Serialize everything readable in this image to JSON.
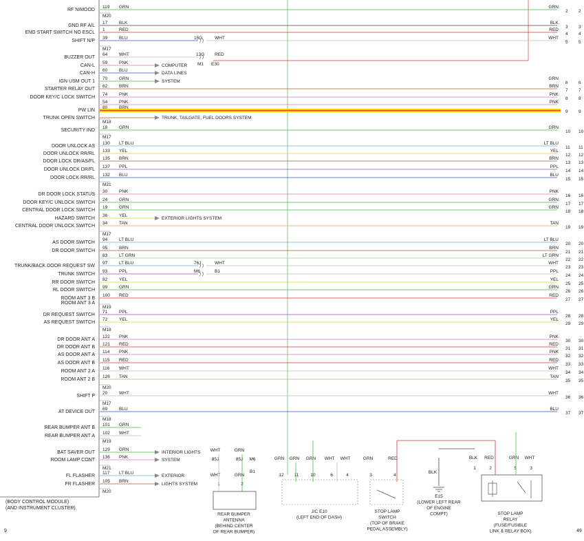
{
  "module_label": [
    "(BODY CONTROL MODULE)",
    "(AND INSTRUMENT CLUSTER)"
  ],
  "page_left": "9",
  "page_right": "49",
  "pins": [
    {
      "label": "RF NIMOOD",
      "pin": "119",
      "color": "GRN",
      "rcolor": "GRN",
      "num": "2",
      "num2": "2",
      "hex": "#4cb84c"
    },
    {
      "conn": "M20"
    },
    {
      "label": "GND RF A/L",
      "pin": "17",
      "color": "BLK",
      "rcolor": "BLK",
      "num": "3",
      "num2": "3",
      "hex": "#444444"
    },
    {
      "label": "ENG START SWITCH NO ESCL",
      "pin": "1",
      "color": "RED",
      "rcolor": "RED",
      "num": "4",
      "num2": "4",
      "hex": "#e03030"
    },
    {
      "label": "SHIFT N/P",
      "pin": "39",
      "color": "BLU",
      "rcolor": "WHT",
      "num": "5",
      "num2": "5",
      "hex": "#3050d0",
      "splice": {
        "code": "15G",
        "wire": "WHT"
      }
    },
    {
      "conn": "M17"
    },
    {
      "label": "BUZZER OUT",
      "pin": "64",
      "color": "WHT",
      "rcolor": "",
      "num": "",
      "num2": "",
      "hex": "#bbbbbb",
      "splice": {
        "code": "13G",
        "wire": "RED",
        "extra1": "M1",
        "extra2": "E30"
      }
    },
    {
      "label": "CAN-L",
      "pin": "59",
      "color": "PNK",
      "rcolor": "",
      "num": "",
      "num2": "",
      "hex": "#e070c0",
      "arrow": "COMPUTER"
    },
    {
      "label": "CAN-H",
      "pin": "60",
      "color": "BLU",
      "rcolor": "",
      "num": "",
      "num2": "",
      "hex": "#3050d0",
      "arrow": "DATA LINES"
    },
    {
      "label": "IGN USM OUT 1",
      "pin": "70",
      "color": "GRN",
      "rcolor": "GRN",
      "num": "6",
      "num2": "6",
      "hex": "#4cb84c",
      "arrow": "SYSTEM"
    },
    {
      "label": "STARTER RELAY OUT",
      "pin": "62",
      "color": "BRN",
      "rcolor": "BRN",
      "num": "7",
      "num2": "7",
      "hex": "#a06030"
    },
    {
      "label": "DOOR KEY/C LOCK SWITCH",
      "pin": "74",
      "color": "PNK",
      "rcolor": "PNK",
      "num": "8",
      "num2": "8",
      "hex": "#e070c0"
    },
    {
      "label": "",
      "pin": "54",
      "color": "PNK",
      "rcolor": "PNK",
      "num": "",
      "num2": "",
      "hex": "#e070c0"
    },
    {
      "label": "PW LIN",
      "pin": "80",
      "color": "BRN",
      "rcolor": "",
      "num": "9",
      "num2": "9",
      "hex": "#e0a020",
      "highlight": true
    },
    {
      "label": "TRUNK OPEN SWITCH",
      "pin": "",
      "color": "",
      "rcolor": "",
      "num": "",
      "num2": "",
      "hex": "#a06030",
      "arrow": "TRUNK, TAILGATE, FUEL DOORS SYSTEM"
    },
    {
      "conn": "M18"
    },
    {
      "label": "SECURITY IND",
      "pin": "18",
      "color": "GRN",
      "rcolor": "GRN",
      "num": "10",
      "num2": "10",
      "hex": "#4cb84c"
    },
    {
      "conn": "M17"
    },
    {
      "label": "DOOR UNLOCK AS",
      "pin": "130",
      "color": "LT BLU",
      "rcolor": "LT BLU",
      "num": "11",
      "num2": "11",
      "hex": "#60b0e0"
    },
    {
      "label": "DOOR UNLOCK RR/RL",
      "pin": "133",
      "color": "YEL",
      "rcolor": "YEL",
      "num": "12",
      "num2": "12",
      "hex": "#e0d030"
    },
    {
      "label": "DOOR LOCK DR/AS/FL",
      "pin": "135",
      "color": "BRN",
      "rcolor": "BRN",
      "num": "13",
      "num2": "13",
      "hex": "#a06030"
    },
    {
      "label": "DOOR UNLOCK DR/FL",
      "pin": "137",
      "color": "PPL",
      "rcolor": "PPL",
      "num": "14",
      "num2": "14",
      "hex": "#9050c0"
    },
    {
      "label": "DOOR LOCK RR/RL",
      "pin": "132",
      "color": "BLU",
      "rcolor": "BLU",
      "num": "15",
      "num2": "15",
      "hex": "#3050d0"
    },
    {
      "conn": "M21"
    },
    {
      "label": "DR DOOR LOCK STATUS",
      "pin": "30",
      "color": "PNK",
      "rcolor": "PNK",
      "num": "16",
      "num2": "16",
      "hex": "#e070c0"
    },
    {
      "label": "DOOR KEY/C UNLOCK SWITCH",
      "pin": "24",
      "color": "GRN",
      "rcolor": "GRN",
      "num": "17",
      "num2": "17",
      "hex": "#4cb84c"
    },
    {
      "label": "CENTRAL DOOR LOCK SWITCH",
      "pin": "19",
      "color": "GRN",
      "rcolor": "GRN",
      "num": "18",
      "num2": "18",
      "hex": "#4cb84c"
    },
    {
      "label": "HAZARD SWITCH",
      "pin": "36",
      "color": "YEL",
      "rcolor": "",
      "num": "",
      "num2": "",
      "hex": "#e0d030",
      "arrow": "EXTERIOR LIGHTS SYSTEM"
    },
    {
      "label": "CENTRAL DOOR UNLOCK SWITCH",
      "pin": "34",
      "color": "TAN",
      "rcolor": "TAN",
      "num": "19",
      "num2": "19",
      "hex": "#c8a878"
    },
    {
      "conn": "M17"
    },
    {
      "label": "AS DOOR SWITCH",
      "pin": "94",
      "color": "LT BLU",
      "rcolor": "LT BLU",
      "num": "20",
      "num2": "20",
      "hex": "#60b0e0"
    },
    {
      "label": "DR DOOR SWITCH",
      "pin": "95",
      "color": "BRN",
      "rcolor": "BRN",
      "num": "21",
      "num2": "21",
      "hex": "#a06030"
    },
    {
      "label": "",
      "pin": "83",
      "color": "LT GRN",
      "rcolor": "LT GRN",
      "num": "22",
      "num2": "22",
      "hex": "#90d890"
    },
    {
      "label": "TRUNK/BACK DOOR REQUEST SW",
      "pin": "97",
      "color": "LT BLU",
      "rcolor": "WHT",
      "num": "23",
      "num2": "23",
      "hex": "#60b0e0",
      "splice": {
        "code": "76J",
        "wire": "WHT"
      }
    },
    {
      "label": "TRUNK SWITCH",
      "pin": "93",
      "color": "PPL",
      "rcolor": "PPL",
      "num": "24",
      "num2": "24",
      "hex": "#9050c0",
      "splice": {
        "code": "M6",
        "wire": "B1"
      }
    },
    {
      "label": "RR DOOR SWITCH",
      "pin": "82",
      "color": "YEL",
      "rcolor": "YEL",
      "num": "25",
      "num2": "25",
      "hex": "#e0d030"
    },
    {
      "label": "RL DOOR SWITCH",
      "pin": "99",
      "color": "GRN",
      "rcolor": "GRN",
      "num": "26",
      "num2": "26",
      "hex": "#4cb84c"
    },
    {
      "label": "ROOM ANT 3 B",
      "pin": "100",
      "color": "RED",
      "rcolor": "RED",
      "num": "27",
      "num2": "27",
      "hex": "#e03030"
    },
    {
      "label": "ROOM ANT 3 A",
      "pin": "",
      "color": "",
      "rcolor": "",
      "num": "",
      "num2": "",
      "hex": ""
    },
    {
      "conn": "M19"
    },
    {
      "label": "DR REQUEST SWITCH",
      "pin": "71",
      "color": "PPL",
      "rcolor": "PPL",
      "num": "28",
      "num2": "28",
      "hex": "#9050c0"
    },
    {
      "label": "AS REQUEST SWITCH",
      "pin": "72",
      "color": "YEL",
      "rcolor": "YEL",
      "num": "29",
      "num2": "29",
      "hex": "#e0d030"
    },
    {
      "conn": "M18"
    },
    {
      "label": "DR DOOR ANT A",
      "pin": "122",
      "color": "PNK",
      "rcolor": "PNK",
      "num": "30",
      "num2": "30",
      "hex": "#e070c0"
    },
    {
      "label": "DR DOOR ANT B",
      "pin": "121",
      "color": "RED",
      "rcolor": "RED",
      "num": "31",
      "num2": "31",
      "hex": "#e03030"
    },
    {
      "label": "AS DOOR ANT A",
      "pin": "114",
      "color": "PNK",
      "rcolor": "PNK",
      "num": "32",
      "num2": "32",
      "hex": "#e070c0"
    },
    {
      "label": "AS DOOR ANT B",
      "pin": "115",
      "color": "RED",
      "rcolor": "RED",
      "num": "33",
      "num2": "33",
      "hex": "#e03030"
    },
    {
      "label": "ROOM ANT 2 A",
      "pin": "116",
      "color": "WHT",
      "rcolor": "WHT",
      "num": "34",
      "num2": "34",
      "hex": "#bbbbbb"
    },
    {
      "label": "ROOM ANT 2 B",
      "pin": "128",
      "color": "TAN",
      "rcolor": "TAN",
      "num": "35",
      "num2": "35",
      "hex": "#c8a878"
    },
    {
      "conn": "M20"
    },
    {
      "label": "SHIFT P",
      "pin": "20",
      "color": "WHT",
      "rcolor": "WHT",
      "num": "36",
      "num2": "36",
      "hex": "#bbbbbb"
    },
    {
      "conn": "M17"
    },
    {
      "label": "AT DEVICE OUT",
      "pin": "69",
      "color": "BLU",
      "rcolor": "BLU",
      "num": "37",
      "num2": "37",
      "hex": "#3050d0"
    },
    {
      "conn": "M18"
    },
    {
      "label": "REAR BUMPER ANT B",
      "pin": "101",
      "color": "GRN",
      "rcolor": "",
      "num": "",
      "num2": "",
      "hex": "#4cb84c"
    },
    {
      "label": "REAR BUMPER ANT A",
      "pin": "102",
      "color": "WHT",
      "rcolor": "",
      "num": "",
      "num2": "",
      "hex": "#bbbbbb"
    },
    {
      "conn": "M19"
    },
    {
      "label": "BAT SAVER OUT",
      "pin": "129",
      "color": "GRN",
      "rcolor": "",
      "num": "",
      "num2": "",
      "hex": "#4cb84c",
      "arrow": "INTERIOR LIGHTS"
    },
    {
      "label": "ROOM LAMP CONT",
      "pin": "136",
      "color": "PNK",
      "rcolor": "",
      "num": "",
      "num2": "",
      "hex": "#e070c0",
      "arrow": "SYSTEM"
    },
    {
      "conn": "M21"
    },
    {
      "label": "FL FLASHER",
      "pin": "117",
      "color": "LT BLU",
      "rcolor": "",
      "num": "",
      "num2": "",
      "hex": "#60b0e0",
      "arrow": "EXTERIOR"
    },
    {
      "label": "FR FLASHER",
      "pin": "105",
      "color": "BRN",
      "rcolor": "",
      "num": "",
      "num2": "",
      "hex": "#a06030",
      "arrow": "LIGHTS SYSTEM"
    },
    {
      "conn": "M20"
    }
  ],
  "components": [
    {
      "id": "rear-bumper-antenna",
      "lines": [
        "REAR BUMPER",
        "ANTENNA",
        "(BEHIND CENTER",
        "OF REAR BUMPER)"
      ],
      "pins": [
        "1",
        "2"
      ],
      "wires": [
        "WHT",
        "GRN"
      ],
      "codes": [
        "85J",
        "85J",
        "M6",
        "B1"
      ]
    },
    {
      "id": "jc-e10",
      "lines": [
        "J/C E10",
        "(LEFT END OF DASH)"
      ],
      "pins": [
        "12",
        "11",
        "10",
        "6",
        "4"
      ],
      "wires": [
        "GRN",
        "GRN",
        "GRN",
        "WHT",
        "WHT"
      ]
    },
    {
      "id": "stop-lamp-switch",
      "lines": [
        "STOP LAMP",
        "SWITCH",
        "(TOP OF BRAKE",
        "PEDAL ASSEMBLY)"
      ],
      "pins": [
        "3",
        "4"
      ],
      "wires": [
        "GRN",
        "RED"
      ]
    },
    {
      "id": "ground-e15",
      "lines": [
        "E15",
        "(LOWER LEFT REAR",
        "OF ENGINE",
        "COMPT)"
      ],
      "wire": "BLK"
    },
    {
      "id": "stop-lamp-relay",
      "lines": [
        "STOP LAMP",
        "RELAY",
        "(FUSE/FUSIBLE",
        "LINK & RELAY BOX)"
      ],
      "pins": [
        "1",
        "2",
        "5",
        "3"
      ],
      "wires": [
        "BLK",
        "RED",
        "GRN",
        "WHT"
      ]
    }
  ]
}
